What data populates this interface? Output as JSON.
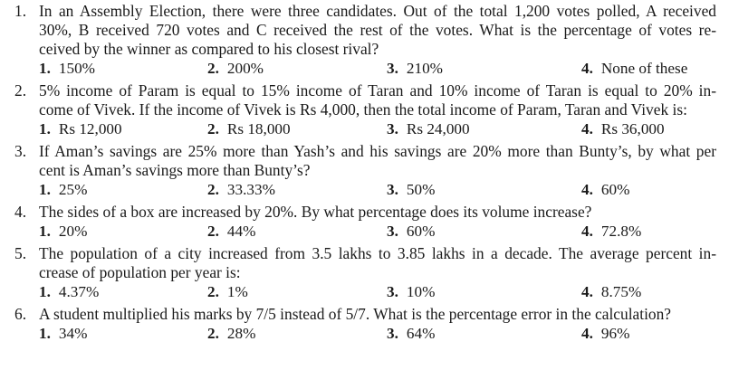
{
  "questions": [
    {
      "number": "1.",
      "lines": [
        "In an Assembly Election, there were three candidates. Out of the total 1,200 votes polled, A received",
        "30%, B received 720 votes and C received the rest of the votes. What is the percentage of votes re-",
        "ceived by the winner as compared to his closest rival?"
      ],
      "options": [
        {
          "num": "1.",
          "text": "150%"
        },
        {
          "num": "2.",
          "text": "200%"
        },
        {
          "num": "3.",
          "text": "210%"
        },
        {
          "num": "4.",
          "text": "None of these"
        }
      ]
    },
    {
      "number": "2.",
      "lines": [
        "5% income of Param is equal to 15% income of Taran and 10% income of Taran is equal to 20% in-",
        "come of Vivek. If the income of Vivek is Rs 4,000, then the total income of Param, Taran and Vivek is:"
      ],
      "options": [
        {
          "num": "1.",
          "text": "Rs 12,000"
        },
        {
          "num": "2.",
          "text": "Rs 18,000"
        },
        {
          "num": "3.",
          "text": "Rs 24,000"
        },
        {
          "num": "4.",
          "text": "Rs 36,000"
        }
      ]
    },
    {
      "number": "3.",
      "lines": [
        "If Aman’s savings are 25% more than Yash’s and his savings are 20% more than Bunty’s, by what per",
        "cent is Aman’s savings more than Bunty’s?"
      ],
      "options": [
        {
          "num": "1.",
          "text": "25%"
        },
        {
          "num": "2.",
          "text": "33.33%"
        },
        {
          "num": "3.",
          "text": "50%"
        },
        {
          "num": "4.",
          "text": "60%"
        }
      ]
    },
    {
      "number": "4.",
      "lines": [
        "The sides of a box are increased by 20%. By what percentage does its volume increase?"
      ],
      "options": [
        {
          "num": "1.",
          "text": "20%"
        },
        {
          "num": "2.",
          "text": "44%"
        },
        {
          "num": "3.",
          "text": "60%"
        },
        {
          "num": "4.",
          "text": "72.8%"
        }
      ]
    },
    {
      "number": "5.",
      "lines": [
        "The population of a city increased from 3.5 lakhs to 3.85 lakhs in a decade. The average percent in-",
        "crease of population per year is:"
      ],
      "options": [
        {
          "num": "1.",
          "text": "4.37%"
        },
        {
          "num": "2.",
          "text": "1%"
        },
        {
          "num": "3.",
          "text": "10%"
        },
        {
          "num": "4.",
          "text": "8.75%"
        }
      ]
    },
    {
      "number": "6.",
      "lines": [
        "A student multiplied his marks by 7/5 instead of 5/7. What is the percentage error in the calculation?"
      ],
      "options": [
        {
          "num": "1.",
          "text": "34%"
        },
        {
          "num": "2.",
          "text": "28%"
        },
        {
          "num": "3.",
          "text": "64%"
        },
        {
          "num": "4.",
          "text": "96%"
        }
      ]
    }
  ]
}
